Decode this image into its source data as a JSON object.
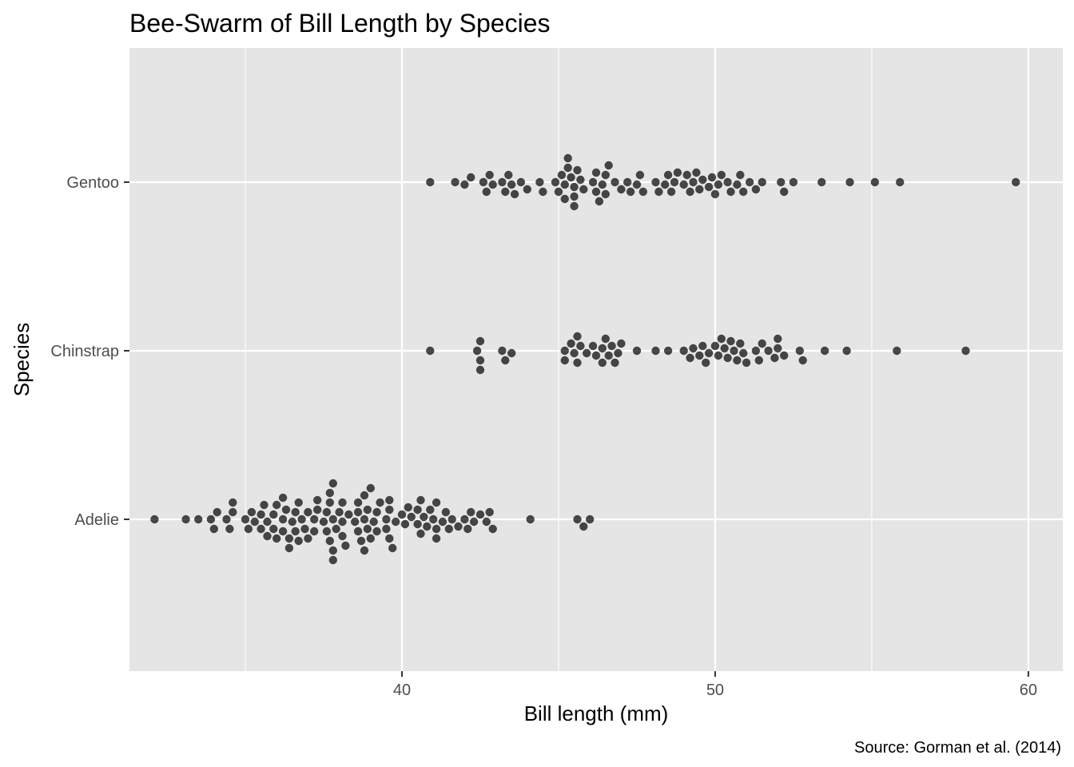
{
  "chart_data": {
    "type": "scatter",
    "subtype": "beeswarm",
    "title": "Bee-Swarm of Bill Length by Species",
    "xlabel": "Bill length (mm)",
    "ylabel": "Species",
    "caption": "Source: Gorman et al. (2014)",
    "xlim": [
      31.3,
      61.1
    ],
    "x_ticks": [
      40,
      50,
      60
    ],
    "x_tick_labels": [
      "40",
      "50",
      "60"
    ],
    "categories": [
      "Adelie",
      "Chinstrap",
      "Gentoo"
    ],
    "grid": true,
    "legend": "none",
    "point_color": "#000000",
    "point_opacity": 0.7,
    "panel_background": "#e5e5e5",
    "gridline_color": "#ffffff",
    "series": [
      {
        "category": "Adelie",
        "values": [
          32.1,
          33.1,
          33.5,
          33.9,
          34.0,
          34.1,
          34.4,
          34.5,
          34.6,
          34.6,
          35.0,
          35.1,
          35.2,
          35.3,
          35.5,
          35.5,
          35.6,
          35.7,
          35.7,
          35.9,
          35.9,
          36.0,
          36.0,
          36.2,
          36.2,
          36.2,
          36.3,
          36.4,
          36.4,
          36.5,
          36.6,
          36.6,
          36.7,
          36.7,
          36.8,
          36.9,
          37.0,
          37.0,
          37.2,
          37.2,
          37.3,
          37.3,
          37.5,
          37.6,
          37.6,
          37.7,
          37.7,
          37.7,
          37.8,
          37.8,
          37.8,
          37.8,
          37.9,
          38.0,
          38.1,
          38.1,
          38.1,
          38.2,
          38.3,
          38.5,
          38.6,
          38.6,
          38.6,
          38.7,
          38.8,
          38.8,
          38.8,
          38.9,
          38.9,
          39.0,
          39.0,
          39.1,
          39.2,
          39.2,
          39.3,
          39.5,
          39.5,
          39.6,
          39.6,
          39.6,
          39.7,
          39.8,
          40.0,
          40.1,
          40.2,
          40.3,
          40.5,
          40.5,
          40.6,
          40.6,
          40.7,
          40.8,
          40.9,
          41.0,
          41.1,
          41.1,
          41.1,
          41.3,
          41.4,
          41.5,
          41.6,
          41.8,
          42.0,
          42.1,
          42.2,
          42.3,
          42.5,
          42.7,
          42.8,
          42.9,
          44.1,
          45.6,
          45.8,
          46.0
        ]
      },
      {
        "category": "Chinstrap",
        "values": [
          40.9,
          42.4,
          42.5,
          42.5,
          42.5,
          43.2,
          43.3,
          43.5,
          45.2,
          45.2,
          45.4,
          45.5,
          45.6,
          45.6,
          45.7,
          45.9,
          46.1,
          46.2,
          46.4,
          46.4,
          46.5,
          46.6,
          46.7,
          46.8,
          46.9,
          47.0,
          47.5,
          48.1,
          48.5,
          49.0,
          49.2,
          49.3,
          49.5,
          49.6,
          49.7,
          49.8,
          50.0,
          50.1,
          50.2,
          50.3,
          50.4,
          50.5,
          50.6,
          50.7,
          50.8,
          50.9,
          51.0,
          51.3,
          51.4,
          51.5,
          51.7,
          51.9,
          52.0,
          52.0,
          52.2,
          52.7,
          52.8,
          53.5,
          54.2,
          55.8,
          58.0
        ]
      },
      {
        "category": "Gentoo",
        "values": [
          40.9,
          41.7,
          42.0,
          42.2,
          42.6,
          42.7,
          42.8,
          42.9,
          43.2,
          43.3,
          43.4,
          43.5,
          43.6,
          43.8,
          44.0,
          44.4,
          44.5,
          44.9,
          45.0,
          45.1,
          45.2,
          45.2,
          45.3,
          45.3,
          45.4,
          45.5,
          45.5,
          45.5,
          45.6,
          45.7,
          45.8,
          46.1,
          46.2,
          46.2,
          46.3,
          46.4,
          46.5,
          46.5,
          46.6,
          46.8,
          47.0,
          47.2,
          47.3,
          47.5,
          47.6,
          47.7,
          48.1,
          48.2,
          48.4,
          48.5,
          48.6,
          48.7,
          48.8,
          49.0,
          49.1,
          49.2,
          49.3,
          49.4,
          49.5,
          49.6,
          49.8,
          49.9,
          50.0,
          50.1,
          50.2,
          50.4,
          50.5,
          50.7,
          50.8,
          50.9,
          51.1,
          51.3,
          51.5,
          52.1,
          52.2,
          52.5,
          53.4,
          54.3,
          55.1,
          55.9,
          59.6
        ]
      }
    ]
  }
}
